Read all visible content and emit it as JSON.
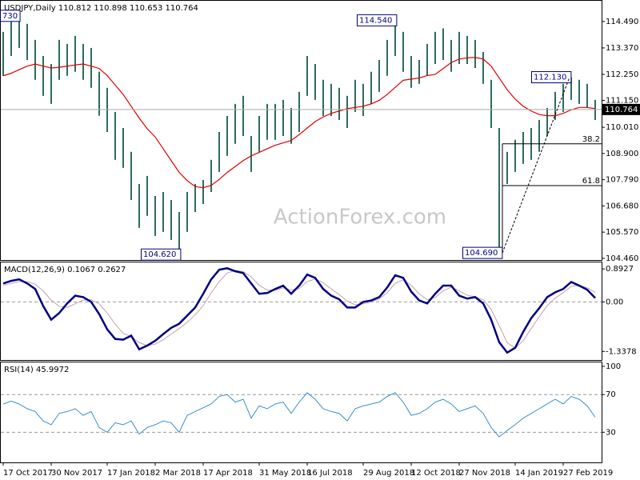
{
  "chart_data": [
    {
      "type": "hlbar",
      "title": "USDJPY,Daily  110.812 110.898 110.653 110.764",
      "watermark": "ActionForex.com",
      "color": "#2e6b5e",
      "ylim": [
        104.39,
        115.4
      ],
      "yticks": [
        {
          "value": 114.49,
          "label": "114.490"
        },
        {
          "value": 113.37,
          "label": "113.370"
        },
        {
          "value": 112.25,
          "label": "112.250"
        },
        {
          "value": 111.15,
          "label": "111.150"
        },
        {
          "value": 110.01,
          "label": "110.010"
        },
        {
          "value": 108.9,
          "label": "108.900"
        },
        {
          "value": 107.79,
          "label": "107.790"
        },
        {
          "value": 106.68,
          "label": "106.680"
        },
        {
          "value": 105.57,
          "label": "105.570"
        },
        {
          "value": 104.46,
          "label": "104.460"
        }
      ],
      "high": [
        114.05,
        114.55,
        114.73,
        114.39,
        113.71,
        113.03,
        112.69,
        113.71,
        113.54,
        113.88,
        113.54,
        113.37,
        112.36,
        111.68,
        110.66,
        109.98,
        108.97,
        107.61,
        107.95,
        107.1,
        107.27,
        106.93,
        106.42,
        107.27,
        107.61,
        107.78,
        108.63,
        109.81,
        110.49,
        111.0,
        111.34,
        109.64,
        110.49,
        111.0,
        111.0,
        111.17,
        110.83,
        111.51,
        113.03,
        112.69,
        112.02,
        111.85,
        111.68,
        111.34,
        112.02,
        111.85,
        112.36,
        112.86,
        113.71,
        114.54,
        114.05,
        113.03,
        112.86,
        113.54,
        114.05,
        114.2,
        113.71,
        114.05,
        113.88,
        113.71,
        113.2,
        112.02,
        109.98,
        108.97,
        109.48,
        109.81,
        109.98,
        110.32,
        110.83,
        111.51,
        111.85,
        112.13,
        112.02,
        111.85,
        111.17
      ],
      "low": [
        112.19,
        113.03,
        113.37,
        112.86,
        112.02,
        111.34,
        111.0,
        112.02,
        112.19,
        112.36,
        112.02,
        111.68,
        110.5,
        109.81,
        108.63,
        108.29,
        106.93,
        105.75,
        106.26,
        105.41,
        105.58,
        105.24,
        104.62,
        105.58,
        106.42,
        106.76,
        107.27,
        108.12,
        108.8,
        109.31,
        109.64,
        108.12,
        108.97,
        109.48,
        109.48,
        109.64,
        109.31,
        109.81,
        111.34,
        111.17,
        110.49,
        110.49,
        110.32,
        109.98,
        110.66,
        110.49,
        111.0,
        111.51,
        112.19,
        113.03,
        112.36,
        111.68,
        111.85,
        112.19,
        112.69,
        112.86,
        112.36,
        112.69,
        112.69,
        112.52,
        111.85,
        109.98,
        104.69,
        107.61,
        108.12,
        108.46,
        108.63,
        108.97,
        109.64,
        110.32,
        110.66,
        111.17,
        111.0,
        110.83,
        110.32
      ],
      "ma": {
        "color": "#e00000",
        "values": [
          112.19,
          112.3,
          112.45,
          112.6,
          112.69,
          112.6,
          112.52,
          112.55,
          112.6,
          112.65,
          112.69,
          112.6,
          112.5,
          112.2,
          111.8,
          111.4,
          110.9,
          110.4,
          109.95,
          109.6,
          109.1,
          108.6,
          108.1,
          107.75,
          107.5,
          107.45,
          107.55,
          107.8,
          108.1,
          108.35,
          108.6,
          108.8,
          108.95,
          109.1,
          109.25,
          109.35,
          109.45,
          109.7,
          109.98,
          110.25,
          110.45,
          110.6,
          110.7,
          110.8,
          110.85,
          110.9,
          111.0,
          111.15,
          111.4,
          111.7,
          112.0,
          112.05,
          112.1,
          112.2,
          112.25,
          112.5,
          112.75,
          112.9,
          112.95,
          112.97,
          112.9,
          112.6,
          112.1,
          111.6,
          111.2,
          110.9,
          110.7,
          110.55,
          110.5,
          110.5,
          110.6,
          110.75,
          110.85,
          110.85,
          110.8
        ]
      },
      "last": 110.764,
      "annotations": [
        {
          "label": "730",
          "value": 114.73
        },
        {
          "label": "114.540",
          "value": 114.54
        },
        {
          "label": "112.130",
          "value": 112.13
        },
        {
          "label": "104.620",
          "value": 104.62
        },
        {
          "label": "104.690",
          "value": 104.69
        }
      ],
      "fib_levels": [
        {
          "label": "38.2",
          "value": 109.31
        },
        {
          "label": "61.8",
          "value": 107.54
        }
      ]
    },
    {
      "type": "line",
      "title": "MACD(12,26,9) 0.1067 0.2627",
      "ylim": [
        -1.57,
        1.09
      ],
      "yticks": [
        0.8927,
        {
          "value": 0,
          "label": "0.00"
        },
        -1.3378
      ],
      "levels": [
        0
      ],
      "series": [
        {
          "color": "#000080",
          "values": [
            0.5,
            0.57,
            0.61,
            0.5,
            0.35,
            -0.11,
            -0.48,
            -0.3,
            -0.04,
            0.17,
            0.13,
            0.0,
            -0.33,
            -0.74,
            -1.0,
            -1.02,
            -0.91,
            -1.28,
            -1.18,
            -1.05,
            -0.87,
            -0.7,
            -0.59,
            -0.37,
            -0.15,
            0.22,
            0.61,
            0.87,
            0.91,
            0.83,
            0.78,
            0.5,
            0.22,
            0.24,
            0.35,
            0.44,
            0.22,
            0.44,
            0.74,
            0.65,
            0.35,
            0.17,
            0.07,
            -0.15,
            -0.15,
            0.0,
            0.04,
            0.13,
            0.39,
            0.72,
            0.65,
            0.28,
            0.04,
            -0.04,
            0.22,
            0.44,
            0.44,
            0.17,
            0.09,
            0.13,
            -0.04,
            -0.48,
            -1.09,
            -1.37,
            -1.24,
            -0.81,
            -0.44,
            -0.17,
            0.13,
            0.26,
            0.35,
            0.54,
            0.44,
            0.33,
            0.1067
          ]
        },
        {
          "color": "#c4a0b4",
          "values": [
            0.45,
            0.5,
            0.55,
            0.55,
            0.48,
            0.3,
            0.05,
            -0.12,
            -0.15,
            -0.05,
            0.05,
            0.06,
            -0.05,
            -0.3,
            -0.6,
            -0.85,
            -0.93,
            -1.1,
            -1.18,
            -1.14,
            -1.02,
            -0.87,
            -0.72,
            -0.55,
            -0.35,
            -0.1,
            0.25,
            0.55,
            0.78,
            0.85,
            0.82,
            0.68,
            0.45,
            0.32,
            0.32,
            0.38,
            0.32,
            0.36,
            0.55,
            0.62,
            0.52,
            0.35,
            0.2,
            0.02,
            -0.08,
            -0.05,
            0.0,
            0.08,
            0.25,
            0.5,
            0.6,
            0.45,
            0.22,
            0.06,
            0.12,
            0.3,
            0.4,
            0.3,
            0.18,
            0.14,
            0.06,
            -0.2,
            -0.65,
            -1.1,
            -1.25,
            -1.05,
            -0.72,
            -0.4,
            -0.1,
            0.1,
            0.25,
            0.42,
            0.45,
            0.38,
            0.2627
          ]
        }
      ]
    },
    {
      "type": "line",
      "title": "RSI(14) 45.9972",
      "ylim": [
        -2,
        105
      ],
      "yticks": [
        100,
        70,
        30
      ],
      "levels": [
        70,
        30
      ],
      "categories": [
        "17 Oct 2017",
        null,
        null,
        null,
        null,
        null,
        "30 Nov 2017",
        null,
        null,
        null,
        null,
        null,
        null,
        "17 Jan 2018",
        null,
        null,
        null,
        null,
        null,
        "2 Mar 2018",
        null,
        null,
        null,
        null,
        null,
        "17 Apr 2018",
        null,
        null,
        null,
        null,
        null,
        null,
        "31 May 2018",
        null,
        null,
        null,
        null,
        null,
        "16 Jul 2018",
        null,
        null,
        null,
        null,
        null,
        null,
        "29 Aug 2018",
        null,
        null,
        null,
        null,
        null,
        "12 Oct 2018",
        null,
        null,
        null,
        null,
        null,
        "27 Nov 2018",
        null,
        null,
        null,
        null,
        null,
        null,
        "14 Jan 2019",
        null,
        null,
        null,
        null,
        null,
        "27 Feb 2019",
        null,
        null,
        null,
        null
      ],
      "series": [
        {
          "color": "#3a8fd0",
          "values": [
            60,
            63,
            60,
            55,
            52,
            42,
            38,
            50,
            52,
            55,
            48,
            52,
            35,
            30,
            40,
            38,
            42,
            28,
            35,
            38,
            42,
            40,
            30,
            48,
            52,
            56,
            60,
            68,
            70,
            62,
            65,
            45,
            58,
            55,
            60,
            62,
            50,
            62,
            72,
            65,
            55,
            52,
            50,
            42,
            55,
            58,
            60,
            62,
            68,
            72,
            62,
            48,
            50,
            55,
            62,
            65,
            60,
            52,
            55,
            58,
            50,
            35,
            25,
            32,
            38,
            45,
            50,
            55,
            60,
            65,
            60,
            68,
            65,
            58,
            45.9972
          ]
        }
      ]
    }
  ]
}
